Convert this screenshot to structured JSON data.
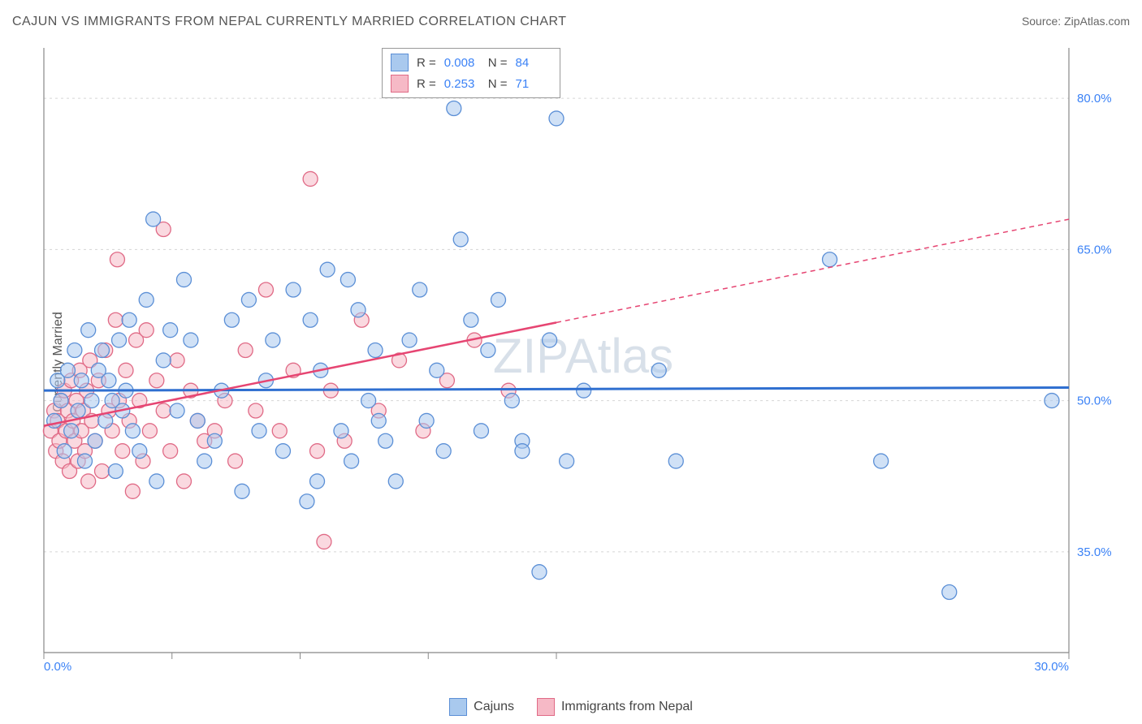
{
  "title": "CAJUN VS IMMIGRANTS FROM NEPAL CURRENTLY MARRIED CORRELATION CHART",
  "source_label": "Source: ",
  "source_value": "ZipAtlas.com",
  "y_axis_label": "Currently Married",
  "watermark": "ZIPAtlas",
  "chart": {
    "type": "scatter",
    "background": "#ffffff",
    "plot_border_color": "#888888",
    "grid_color": "#d5d5d5",
    "grid_dash": "3,4",
    "xlim": [
      0,
      30
    ],
    "ylim": [
      25,
      85
    ],
    "x_corner_labels": [
      "0.0%",
      "30.0%"
    ],
    "y_ticks": [
      35.0,
      50.0,
      65.0,
      80.0
    ],
    "y_tick_labels": [
      "35.0%",
      "50.0%",
      "65.0%",
      "80.0%"
    ],
    "x_tick_positions": [
      0,
      3.75,
      7.5,
      11.25,
      15,
      30
    ],
    "marker_radius": 9,
    "marker_opacity": 0.55,
    "series": [
      {
        "key": "cajuns",
        "label": "Cajuns",
        "fill": "#a9c9ee",
        "stroke": "#5b8fd6",
        "line_color": "#2f6fd0",
        "line_width": 3,
        "R": "0.008",
        "N": "84",
        "trend": {
          "y_at_x0": 51.0,
          "y_at_xmax": 51.3
        },
        "points": [
          [
            0.3,
            48
          ],
          [
            0.4,
            52
          ],
          [
            0.5,
            50
          ],
          [
            0.6,
            45
          ],
          [
            0.7,
            53
          ],
          [
            0.8,
            47
          ],
          [
            0.9,
            55
          ],
          [
            1.0,
            49
          ],
          [
            1.1,
            52
          ],
          [
            1.2,
            44
          ],
          [
            1.3,
            57
          ],
          [
            1.4,
            50
          ],
          [
            1.5,
            46
          ],
          [
            1.6,
            53
          ],
          [
            1.7,
            55
          ],
          [
            1.8,
            48
          ],
          [
            1.9,
            52
          ],
          [
            2.0,
            50
          ],
          [
            2.1,
            43
          ],
          [
            2.2,
            56
          ],
          [
            2.3,
            49
          ],
          [
            2.4,
            51
          ],
          [
            2.5,
            58
          ],
          [
            2.6,
            47
          ],
          [
            2.8,
            45
          ],
          [
            3.0,
            60
          ],
          [
            3.2,
            68
          ],
          [
            3.3,
            42
          ],
          [
            3.5,
            54
          ],
          [
            3.7,
            57
          ],
          [
            3.9,
            49
          ],
          [
            4.1,
            62
          ],
          [
            4.3,
            56
          ],
          [
            4.5,
            48
          ],
          [
            4.7,
            44
          ],
          [
            5.0,
            46
          ],
          [
            5.2,
            51
          ],
          [
            5.5,
            58
          ],
          [
            5.8,
            41
          ],
          [
            6.0,
            60
          ],
          [
            6.3,
            47
          ],
          [
            6.7,
            56
          ],
          [
            7.0,
            45
          ],
          [
            7.3,
            61
          ],
          [
            7.7,
            40
          ],
          [
            8.0,
            42
          ],
          [
            8.1,
            53
          ],
          [
            8.3,
            63
          ],
          [
            8.7,
            47
          ],
          [
            9.0,
            44
          ],
          [
            9.2,
            59
          ],
          [
            9.5,
            50
          ],
          [
            9.7,
            55
          ],
          [
            10.0,
            46
          ],
          [
            10.3,
            42
          ],
          [
            10.7,
            56
          ],
          [
            11.0,
            61
          ],
          [
            11.2,
            48
          ],
          [
            11.7,
            45
          ],
          [
            12.0,
            79
          ],
          [
            12.5,
            58
          ],
          [
            12.8,
            47
          ],
          [
            13.0,
            55
          ],
          [
            13.3,
            60
          ],
          [
            14.0,
            46
          ],
          [
            14.0,
            45
          ],
          [
            14.5,
            33
          ],
          [
            15.0,
            78
          ],
          [
            14.8,
            56
          ],
          [
            15.3,
            44
          ],
          [
            15.8,
            51
          ],
          [
            18.0,
            53
          ],
          [
            18.5,
            44
          ],
          [
            23.0,
            64
          ],
          [
            24.5,
            44
          ],
          [
            26.5,
            31
          ],
          [
            29.5,
            50
          ],
          [
            6.5,
            52
          ],
          [
            7.8,
            58
          ],
          [
            8.9,
            62
          ],
          [
            9.8,
            48
          ],
          [
            11.5,
            53
          ],
          [
            12.2,
            66
          ],
          [
            13.7,
            50
          ]
        ]
      },
      {
        "key": "nepal",
        "label": "Immigrants from Nepal",
        "fill": "#f6b9c6",
        "stroke": "#e06a86",
        "line_color": "#e64572",
        "line_width": 2.5,
        "R": "0.253",
        "N": "71",
        "trend": {
          "y_at_x0": 47.5,
          "y_at_xmax": 68.0,
          "solid_until_x": 15
        },
        "points": [
          [
            0.2,
            47
          ],
          [
            0.3,
            49
          ],
          [
            0.35,
            45
          ],
          [
            0.4,
            48
          ],
          [
            0.45,
            46
          ],
          [
            0.5,
            50
          ],
          [
            0.55,
            44
          ],
          [
            0.6,
            51
          ],
          [
            0.65,
            47
          ],
          [
            0.7,
            49
          ],
          [
            0.75,
            43
          ],
          [
            0.8,
            52
          ],
          [
            0.85,
            48
          ],
          [
            0.9,
            46
          ],
          [
            0.95,
            50
          ],
          [
            1.0,
            44
          ],
          [
            1.05,
            53
          ],
          [
            1.1,
            47
          ],
          [
            1.15,
            49
          ],
          [
            1.2,
            45
          ],
          [
            1.25,
            51
          ],
          [
            1.3,
            42
          ],
          [
            1.35,
            54
          ],
          [
            1.4,
            48
          ],
          [
            1.5,
            46
          ],
          [
            1.6,
            52
          ],
          [
            1.7,
            43
          ],
          [
            1.8,
            55
          ],
          [
            1.9,
            49
          ],
          [
            2.0,
            47
          ],
          [
            2.1,
            58
          ],
          [
            2.15,
            64
          ],
          [
            2.2,
            50
          ],
          [
            2.3,
            45
          ],
          [
            2.4,
            53
          ],
          [
            2.5,
            48
          ],
          [
            2.6,
            41
          ],
          [
            2.7,
            56
          ],
          [
            2.8,
            50
          ],
          [
            2.9,
            44
          ],
          [
            3.0,
            57
          ],
          [
            3.1,
            47
          ],
          [
            3.3,
            52
          ],
          [
            3.5,
            49
          ],
          [
            3.5,
            67
          ],
          [
            3.7,
            45
          ],
          [
            3.9,
            54
          ],
          [
            4.1,
            42
          ],
          [
            4.3,
            51
          ],
          [
            4.5,
            48
          ],
          [
            4.7,
            46
          ],
          [
            5.0,
            47
          ],
          [
            5.3,
            50
          ],
          [
            5.6,
            44
          ],
          [
            5.9,
            55
          ],
          [
            6.2,
            49
          ],
          [
            6.5,
            61
          ],
          [
            6.9,
            47
          ],
          [
            7.3,
            53
          ],
          [
            7.8,
            72
          ],
          [
            8.0,
            45
          ],
          [
            8.2,
            36
          ],
          [
            8.4,
            51
          ],
          [
            8.8,
            46
          ],
          [
            9.3,
            58
          ],
          [
            9.8,
            49
          ],
          [
            10.4,
            54
          ],
          [
            11.1,
            47
          ],
          [
            11.8,
            52
          ],
          [
            12.6,
            56
          ],
          [
            13.6,
            51
          ]
        ]
      }
    ]
  },
  "legend": {
    "R_label": "R =",
    "N_label": "N =",
    "series": [
      {
        "swatch_fill": "#a9c9ee",
        "swatch_stroke": "#5b8fd6",
        "R": "0.008",
        "N": "84"
      },
      {
        "swatch_fill": "#f6b9c6",
        "swatch_stroke": "#e06a86",
        "R": "0.253",
        "N": "71"
      }
    ]
  },
  "bottom_legend": [
    {
      "swatch_fill": "#a9c9ee",
      "swatch_stroke": "#5b8fd6",
      "label": "Cajuns"
    },
    {
      "swatch_fill": "#f6b9c6",
      "swatch_stroke": "#e06a86",
      "label": "Immigrants from Nepal"
    }
  ]
}
